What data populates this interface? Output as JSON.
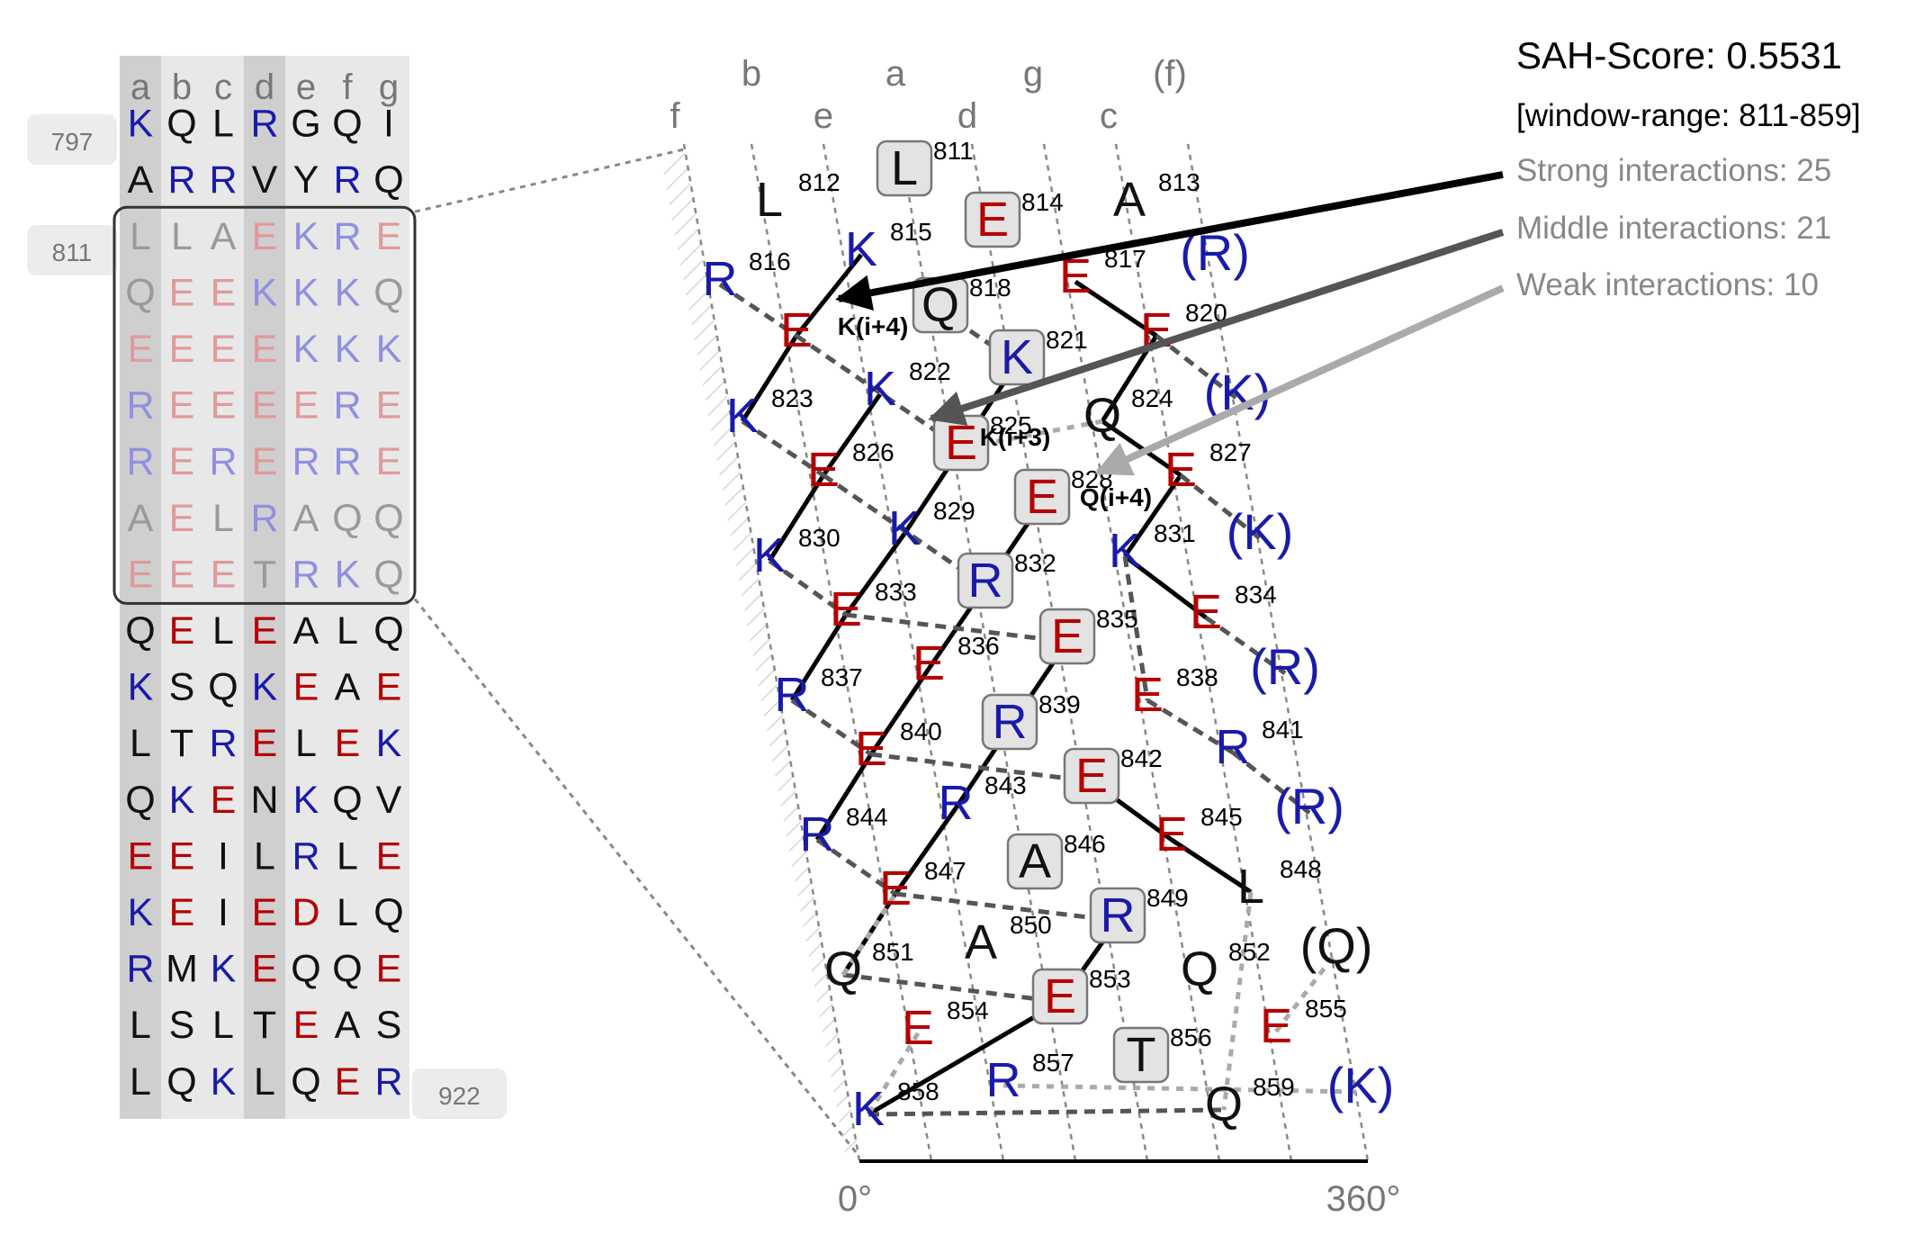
{
  "colors": {
    "positive": "#1a1aaa",
    "negative": "#b40000",
    "neutral": "#111111",
    "positive_faded": "#9090e0",
    "negative_faded": "#e09a9a",
    "neutral_faded": "#9a9a9a",
    "column_dark": "#cfcfcf",
    "column_light": "#e8e8e8",
    "axis_label": "#888888",
    "strong": "#000000",
    "middle": "#555555",
    "weak": "#aaaaaa"
  },
  "heptad": {
    "columns": [
      "a",
      "b",
      "c",
      "d",
      "e",
      "f",
      "g"
    ],
    "start_label": "797",
    "window_label": "811",
    "end_label": "922",
    "window_rows": [
      2,
      8
    ],
    "rows": [
      "KQLRGQI",
      "ARRVYRQ",
      "LLAEKRE",
      "QEEKKKQ",
      "EEEEKKK",
      "REEEERE",
      "RERERRE",
      "AELRAQQ",
      "EEETRKQ",
      "QELEALQ",
      "KSQKEAE",
      "LTRELEK",
      "QKENKQV",
      "EEILRLE",
      "KEIEDLQ",
      "RMKEQQE",
      "LSLTEAS",
      "LQKLQER"
    ]
  },
  "net": {
    "column_labels": [
      {
        "text": "f"
      },
      {
        "text": "b"
      },
      {
        "text": "e"
      },
      {
        "text": "a"
      },
      {
        "text": "d"
      },
      {
        "text": "g"
      },
      {
        "text": "c"
      },
      {
        "text": "(f)"
      }
    ],
    "axis_start": "0°",
    "axis_end": "360°",
    "residues": [
      {
        "num": "811",
        "aa": "L",
        "boxed": true
      },
      {
        "num": "812",
        "aa": "L"
      },
      {
        "num": "813",
        "aa": "A"
      },
      {
        "num": "814",
        "aa": "E",
        "boxed": true
      },
      {
        "num": "815",
        "aa": "K"
      },
      {
        "num": "816",
        "aa": "R"
      },
      {
        "num": "817",
        "aa": "E"
      },
      {
        "num": "",
        "aa": "(R)"
      },
      {
        "num": "818",
        "aa": "Q",
        "boxed": true
      },
      {
        "num": "",
        "aa": "E"
      },
      {
        "num": "820",
        "aa": "E"
      },
      {
        "num": "821",
        "aa": "K",
        "boxed": true
      },
      {
        "num": "822",
        "aa": "K"
      },
      {
        "num": "823",
        "aa": "K"
      },
      {
        "num": "824",
        "aa": "Q"
      },
      {
        "num": "",
        "aa": "(K)"
      },
      {
        "num": "825",
        "aa": "E",
        "boxed": true
      },
      {
        "num": "826",
        "aa": "E"
      },
      {
        "num": "827",
        "aa": "E"
      },
      {
        "num": "828",
        "aa": "E",
        "boxed": true
      },
      {
        "num": "829",
        "aa": "K"
      },
      {
        "num": "830",
        "aa": "K"
      },
      {
        "num": "831",
        "aa": "K"
      },
      {
        "num": "",
        "aa": "(K)"
      },
      {
        "num": "832",
        "aa": "R",
        "boxed": true
      },
      {
        "num": "833",
        "aa": "E"
      },
      {
        "num": "834",
        "aa": "E"
      },
      {
        "num": "835",
        "aa": "E",
        "boxed": true
      },
      {
        "num": "836",
        "aa": "E"
      },
      {
        "num": "837",
        "aa": "R"
      },
      {
        "num": "838",
        "aa": "E"
      },
      {
        "num": "",
        "aa": "(R)"
      },
      {
        "num": "839",
        "aa": "R",
        "boxed": true
      },
      {
        "num": "840",
        "aa": "E"
      },
      {
        "num": "841",
        "aa": "R"
      },
      {
        "num": "842",
        "aa": "E",
        "boxed": true
      },
      {
        "num": "843",
        "aa": "R"
      },
      {
        "num": "844",
        "aa": "R"
      },
      {
        "num": "845",
        "aa": "E"
      },
      {
        "num": "",
        "aa": "(R)"
      },
      {
        "num": "846",
        "aa": "A",
        "boxed": true
      },
      {
        "num": "847",
        "aa": "E"
      },
      {
        "num": "848",
        "aa": "L"
      },
      {
        "num": "849",
        "aa": "R",
        "boxed": true
      },
      {
        "num": "850",
        "aa": "A"
      },
      {
        "num": "851",
        "aa": "Q"
      },
      {
        "num": "852",
        "aa": "Q"
      },
      {
        "num": "",
        "aa": "(Q)"
      },
      {
        "num": "853",
        "aa": "E",
        "boxed": true
      },
      {
        "num": "854",
        "aa": "E"
      },
      {
        "num": "855",
        "aa": "E"
      },
      {
        "num": "856",
        "aa": "T",
        "boxed": true
      },
      {
        "num": "857",
        "aa": "R"
      },
      {
        "num": "858",
        "aa": "K"
      },
      {
        "num": "859",
        "aa": "Q"
      },
      {
        "num": "",
        "aa": "(K)"
      }
    ],
    "annotations": [
      "K(i+4)",
      "K(i+3)",
      "Q(i+4)"
    ]
  },
  "info": {
    "score_text": "SAH-Score: 0.5531",
    "window_text": "[window-range: 811-859]",
    "strong_text": "Strong interactions: 25",
    "middle_text": "Middle interactions: 21",
    "weak_text": "Weak interactions: 10",
    "strong_count": 25,
    "middle_count": 21,
    "weak_count": 10
  }
}
